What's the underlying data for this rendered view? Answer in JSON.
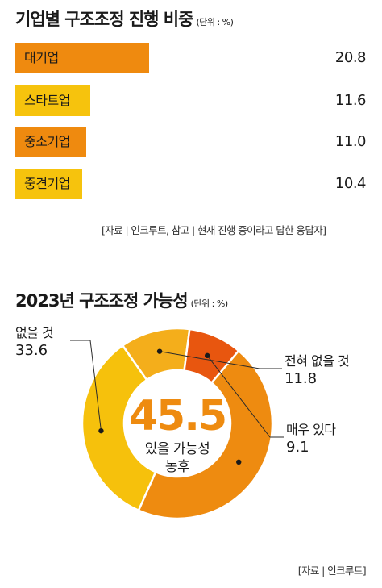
{
  "chart1": {
    "title": "기업별 구조조정 진행 비중",
    "unit": "(단위 : %)",
    "source": "[자료 | 인크루트, 참고 | 현재 진행 중이라고 답한 응답자]"
  },
  "chart2": {
    "title": "2023년 구조조정 가능성",
    "unit": "(단위 : %)",
    "center_value": "45.5",
    "center_label_1": "있을 가능성",
    "center_label_2": "농후",
    "source": "[자료 | 인크루트]"
  },
  "colors": {
    "orange": "#ef8a0f",
    "yellow": "#f6c30d",
    "donut_yellow": "#f6c10c",
    "donut_light": "#f4ae1b",
    "donut_red": "#e8560f",
    "donut_orange": "#ee8b10",
    "center_number": "#ee8b10"
  },
  "chart_data": [
    {
      "type": "bar",
      "orientation": "horizontal",
      "categories": [
        "대기업",
        "스타트업",
        "중소기업",
        "중견기업"
      ],
      "values": [
        20.8,
        11.6,
        11.0,
        10.4
      ],
      "value_labels": [
        "20.8",
        "11.6",
        "11.0",
        "10.4"
      ],
      "title": "기업별 구조조정 진행 비중",
      "xlim": [
        0,
        20.8
      ]
    },
    {
      "type": "pie",
      "variant": "donut",
      "categories": [
        "없을 것",
        "전혀 없을 것",
        "매우 있다",
        "있을 가능성 농후"
      ],
      "values": [
        33.6,
        11.8,
        9.1,
        45.5
      ],
      "value_labels": [
        "33.6",
        "11.8",
        "9.1",
        "45.5"
      ],
      "title": "2023년 구조조정 가능성"
    }
  ]
}
